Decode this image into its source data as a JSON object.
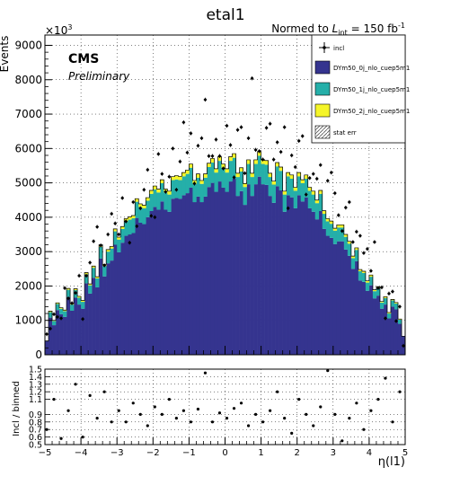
{
  "chart_data": {
    "type": "bar",
    "title": "etal1",
    "lumi_label": {
      "prefix": "Normed to ",
      "var": "L",
      "sub": "int",
      "suffix": " = 150 fb",
      "sup": "-1"
    },
    "cms_label": "CMS",
    "preliminary_label": "Preliminary",
    "ylabel": "Events",
    "exponent_label": {
      "base": "×10",
      "sup": "3"
    },
    "xlabel": "η(l1)",
    "ratio_ylabel": "Incl / binned",
    "stacked": true,
    "xlim": [
      -5,
      5
    ],
    "ylim": [
      0,
      9300
    ],
    "ratio_ylim": [
      0.5,
      1.5
    ],
    "x_ticks": [
      -5,
      -4,
      -3,
      -2,
      -1,
      0,
      1,
      2,
      3,
      4,
      5
    ],
    "y_ticks": [
      0,
      1000,
      2000,
      3000,
      4000,
      5000,
      6000,
      7000,
      8000,
      9000
    ],
    "y_tick_labels": [
      "0",
      "1000",
      "2000",
      "3000",
      "4000",
      "5000",
      "6000",
      "7000",
      "8000",
      "9000"
    ],
    "ratio_ticks": [
      0.5,
      0.6,
      0.7,
      0.8,
      0.9,
      1.1,
      1.2,
      1.3,
      1.4,
      1.5
    ],
    "ratio_tick_labels": [
      "0.5",
      "0.6",
      "0.7",
      "0.8",
      "0.9",
      "1.1",
      "1.2",
      "1.3",
      "1.4",
      "1.5"
    ],
    "grid": true,
    "legend_position": "top-right",
    "legend": [
      {
        "label": "incl",
        "kind": "marker"
      },
      {
        "label": "DYm50_0j_nlo_cuep5m1",
        "kind": "fill",
        "color": "#35348f"
      },
      {
        "label": "DYm50_1j_nlo_cuep5m1",
        "kind": "fill",
        "color": "#25afa9"
      },
      {
        "label": "DYm50_2j_nlo_cuep5m1",
        "kind": "fill",
        "color": "#f5f529"
      },
      {
        "label": "stat err",
        "kind": "hatch"
      }
    ],
    "bin_width": 0.1,
    "series": [
      {
        "name": "DYm50_0j_nlo_cuep5m1",
        "color": "#35348f",
        "values": [
          400,
          1080,
          860,
          1300,
          1180,
          1100,
          1680,
          1280,
          1660,
          1460,
          1340,
          2080,
          1780,
          2240,
          1960,
          2800,
          2280,
          2660,
          2740,
          3200,
          2980,
          3260,
          3460,
          3500,
          3540,
          3980,
          3840,
          3800,
          4000,
          4180,
          4300,
          4220,
          4460,
          4220,
          4160,
          4540,
          4560,
          4540,
          4640,
          4700,
          4860,
          4440,
          4600,
          4440,
          4600,
          4880,
          5000,
          4740,
          5040,
          4860,
          4740,
          5040,
          5120,
          4620,
          4760,
          4360,
          4960,
          4620,
          4960,
          5180,
          4960,
          4940,
          4620,
          4420,
          4900,
          4780,
          4160,
          4640,
          4580,
          4260,
          4640,
          4460,
          4580,
          4260,
          4160,
          3940,
          4180,
          3660,
          3460,
          3400,
          3220,
          3300,
          3300,
          3060,
          2880,
          2500,
          2720,
          2160,
          2120,
          1860,
          2020,
          1640,
          1720,
          1340,
          1460,
          1060,
          1400,
          1320,
          900,
          540
        ]
      },
      {
        "name": "DYm50_1j_nlo_cuep5m1",
        "color": "#25afa9",
        "values": [
          0,
          160,
          120,
          180,
          160,
          170,
          210,
          180,
          220,
          200,
          200,
          260,
          240,
          290,
          260,
          340,
          300,
          340,
          350,
          390,
          370,
          400,
          420,
          430,
          430,
          470,
          460,
          460,
          480,
          500,
          510,
          500,
          530,
          500,
          500,
          540,
          540,
          540,
          550,
          560,
          580,
          530,
          550,
          530,
          550,
          580,
          590,
          560,
          600,
          580,
          560,
          600,
          610,
          550,
          570,
          520,
          590,
          550,
          590,
          610,
          590,
          590,
          550,
          530,
          580,
          570,
          500,
          550,
          540,
          510,
          550,
          530,
          540,
          510,
          500,
          470,
          500,
          440,
          420,
          410,
          390,
          400,
          400,
          370,
          350,
          310,
          330,
          270,
          260,
          240,
          250,
          210,
          220,
          180,
          190,
          140,
          180,
          170,
          120,
          0
        ]
      },
      {
        "name": "DYm50_2j_nlo_cuep5m1",
        "color": "#f5f529",
        "values": [
          0,
          30,
          20,
          30,
          30,
          30,
          40,
          30,
          40,
          40,
          40,
          50,
          40,
          50,
          50,
          60,
          50,
          60,
          60,
          70,
          70,
          70,
          80,
          80,
          80,
          90,
          90,
          90,
          90,
          100,
          100,
          100,
          100,
          100,
          100,
          100,
          110,
          110,
          110,
          110,
          110,
          100,
          110,
          100,
          110,
          110,
          120,
          110,
          120,
          110,
          110,
          120,
          120,
          110,
          110,
          100,
          120,
          110,
          120,
          120,
          120,
          120,
          110,
          100,
          110,
          110,
          100,
          110,
          110,
          100,
          110,
          100,
          110,
          100,
          100,
          90,
          100,
          90,
          80,
          80,
          70,
          80,
          80,
          70,
          70,
          60,
          60,
          50,
          50,
          50,
          50,
          40,
          40,
          30,
          40,
          30,
          30,
          30,
          20,
          0
        ]
      }
    ],
    "incl_points": {
      "name": "incl",
      "x": [
        -4.95,
        -4.85,
        -4.75,
        -4.65,
        -4.55,
        -4.45,
        -4.35,
        -4.25,
        -4.15,
        -4.05,
        -3.95,
        -3.85,
        -3.75,
        -3.65,
        -3.55,
        -3.45,
        -3.35,
        -3.25,
        -3.15,
        -3.05,
        -2.95,
        -2.85,
        -2.75,
        -2.65,
        -2.55,
        -2.45,
        -2.35,
        -2.25,
        -2.15,
        -2.05,
        -1.95,
        -1.85,
        -1.75,
        -1.65,
        -1.55,
        -1.45,
        -1.35,
        -1.25,
        -1.15,
        -1.05,
        -0.95,
        -0.85,
        -0.75,
        -0.65,
        -0.55,
        -0.45,
        -0.35,
        -0.25,
        -0.15,
        -0.05,
        0.05,
        0.15,
        0.25,
        0.35,
        0.45,
        0.55,
        0.65,
        0.75,
        0.85,
        0.95,
        1.05,
        1.15,
        1.25,
        1.35,
        1.45,
        1.55,
        1.65,
        1.75,
        1.85,
        1.95,
        2.05,
        2.15,
        2.25,
        2.35,
        2.45,
        2.55,
        2.65,
        2.75,
        2.85,
        2.95,
        3.05,
        3.15,
        3.25,
        3.35,
        3.45,
        3.55,
        3.65,
        3.75,
        3.85,
        3.95,
        4.05,
        4.15,
        4.25,
        4.35,
        4.45,
        4.55,
        4.65,
        4.75,
        4.85,
        4.95
      ],
      "y": [
        600,
        760,
        1180,
        1100,
        1060,
        1940,
        1640,
        1500,
        1800,
        2300,
        1040,
        2300,
        2680,
        3300,
        3720,
        3180,
        2600,
        3500,
        4100,
        3820,
        3500,
        4560,
        3880,
        3260,
        4440,
        3740,
        4260,
        4800,
        5380,
        4040,
        4000,
        5840,
        5260,
        4740,
        5180,
        6000,
        4800,
        5620,
        6760,
        5880,
        6440,
        4980,
        6080,
        6300,
        7420,
        5780,
        5780,
        6260,
        5780,
        5420,
        6660,
        6100,
        5160,
        6540,
        6620,
        5280,
        6300,
        8040,
        5960,
        5920,
        5680,
        6600,
        6720,
        5680,
        6180,
        5900,
        6620,
        4260,
        5800,
        5460,
        6220,
        6360,
        4660,
        5140,
        5260,
        5120,
        5520,
        6280,
        5060,
        5300,
        4700,
        4060,
        3600,
        4280,
        4440,
        3280,
        3580,
        3460,
        2960,
        3080,
        2440,
        3280,
        1940,
        1960,
        1060,
        1780,
        1840,
        980,
        1400,
        260
      ]
    },
    "ratio_points": {
      "x": [
        -4.95,
        -4.75,
        -4.55,
        -4.35,
        -4.15,
        -3.95,
        -3.75,
        -3.55,
        -3.35,
        -3.15,
        -2.95,
        -2.75,
        -2.55,
        -2.35,
        -2.15,
        -1.95,
        -1.75,
        -1.55,
        -1.35,
        -1.15,
        -0.95,
        -0.75,
        -0.55,
        -0.35,
        -0.15,
        0.05,
        0.25,
        0.45,
        0.65,
        0.85,
        1.05,
        1.25,
        1.45,
        1.65,
        1.85,
        2.05,
        2.25,
        2.45,
        2.65,
        2.85,
        3.05,
        3.25,
        3.45,
        3.65,
        3.85,
        4.05,
        4.25,
        4.45,
        4.65,
        4.85
      ],
      "y": [
        0.7,
        1.1,
        0.58,
        0.95,
        1.3,
        0.6,
        1.15,
        0.85,
        1.2,
        0.8,
        0.95,
        0.8,
        1.05,
        0.9,
        0.75,
        1.0,
        0.9,
        1.1,
        0.85,
        0.95,
        0.8,
        0.97,
        1.45,
        0.8,
        0.92,
        0.85,
        0.98,
        1.05,
        0.75,
        0.9,
        0.8,
        0.95,
        1.2,
        0.85,
        0.65,
        1.1,
        0.9,
        0.75,
        1.0,
        1.48,
        0.9,
        0.55,
        0.85,
        1.05,
        0.7,
        0.95,
        1.1,
        1.38,
        0.8,
        1.2
      ]
    }
  }
}
